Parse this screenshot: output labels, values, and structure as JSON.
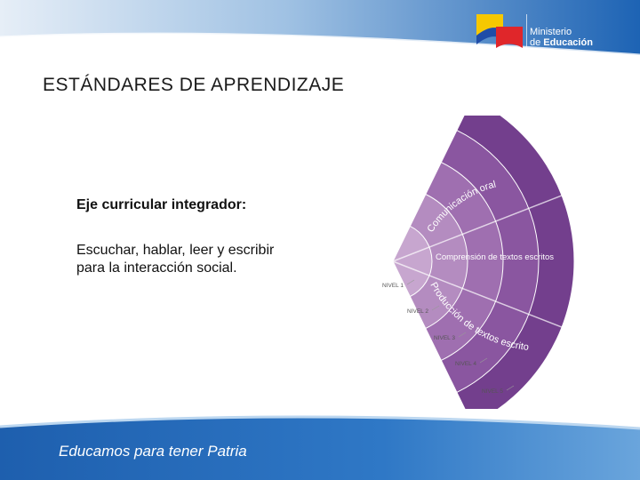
{
  "header": {
    "ministry_line1": "Ministerio",
    "ministry_line2_prefix": "de ",
    "ministry_line2_bold": "Educación"
  },
  "title": "ESTÁNDARES DE APRENDIZAJE",
  "content": {
    "label": "Eje curricular integrador:",
    "description_line1": "Escuchar, hablar, leer y escribir",
    "description_line2": "para la interacción social."
  },
  "diagram": {
    "bands": [
      {
        "label": "Comunicación oral"
      },
      {
        "label": "Comprensión de textos escritos"
      },
      {
        "label": "Producción de textos escritos"
      }
    ],
    "levels": [
      "NIVEL 1",
      "NIVEL 2",
      "NIVEL 3",
      "NIVEL 4",
      "NIVEL 5"
    ],
    "colors": [
      "#c7a6cf",
      "#b48cc0",
      "#9f6fb0",
      "#8a56a0",
      "#733f8d"
    ]
  },
  "footer": {
    "slogan": "Educamos para tener Patria"
  }
}
